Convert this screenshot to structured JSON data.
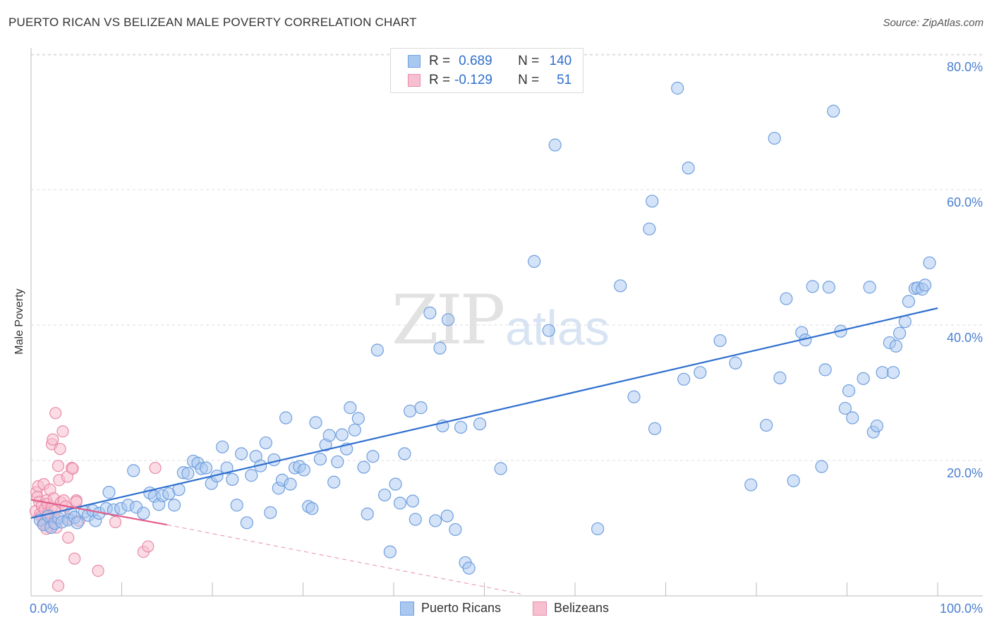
{
  "title": "PUERTO RICAN VS BELIZEAN MALE POVERTY CORRELATION CHART",
  "source": "Source: ZipAtlas.com",
  "watermark": {
    "zip": "ZIP",
    "atlas": "atlas"
  },
  "legend": {
    "r_label": "R =",
    "n_label": "N =",
    "rows": [
      {
        "r": "0.689",
        "n": "140",
        "color": "#a9c8f0",
        "border": "#6f9fdf"
      },
      {
        "r": "-0.129",
        "n": "51",
        "color": "#f7c0d0",
        "border": "#e98aa8"
      }
    ]
  },
  "bottom_legend": [
    "Puerto Ricans",
    "Belizeans"
  ],
  "colors": {
    "blue_fill": "#a9c8f0",
    "blue_stroke": "#6f9fdf",
    "blue_line": "#2f6fcf",
    "pink_fill": "#f7c0d0",
    "pink_stroke": "#e98aa8",
    "pink_line": "#e35d8a",
    "grid": "#dddddd",
    "axis": "#bbbbbb"
  },
  "chart_data": {
    "type": "scatter",
    "title": "PUERTO RICAN VS BELIZEAN MALE POVERTY CORRELATION CHART",
    "xlabel": "",
    "ylabel": "Male Poverty",
    "xlim": [
      0,
      100
    ],
    "ylim": [
      0,
      82
    ],
    "x_ticks": [
      {
        "value": 0,
        "label": "0.0%"
      },
      {
        "value": 100,
        "label": "100.0%"
      }
    ],
    "y_ticks": [
      {
        "value": 20,
        "label": "20.0%"
      },
      {
        "value": 40,
        "label": "40.0%"
      },
      {
        "value": 60,
        "label": "60.0%"
      },
      {
        "value": 80,
        "label": "80.0%"
      }
    ],
    "grid": true,
    "series": [
      {
        "name": "Puerto Ricans",
        "r": 0.689,
        "n": 140,
        "trend": {
          "x0": 0,
          "y0": 11.5,
          "x1": 100,
          "y1": 42.5
        },
        "points": [
          [
            1,
            11.2
          ],
          [
            1.4,
            10.5
          ],
          [
            1.9,
            11.8
          ],
          [
            2.2,
            10.1
          ],
          [
            2.6,
            10.7
          ],
          [
            3,
            11.5
          ],
          [
            3.4,
            10.9
          ],
          [
            4.1,
            11.2
          ],
          [
            4.4,
            12.3
          ],
          [
            4.8,
            11.6
          ],
          [
            5.1,
            10.8
          ],
          [
            5.9,
            12.4
          ],
          [
            6.3,
            11.9
          ],
          [
            6.8,
            12.6
          ],
          [
            7.1,
            11.1
          ],
          [
            7.5,
            12.2
          ],
          [
            8.3,
            12.9
          ],
          [
            8.6,
            15.3
          ],
          [
            9.1,
            12.7
          ],
          [
            9.9,
            12.9
          ],
          [
            10.7,
            13.4
          ],
          [
            11.3,
            18.5
          ],
          [
            11.6,
            13.1
          ],
          [
            12.4,
            12.2
          ],
          [
            13.1,
            15.2
          ],
          [
            13.6,
            14.7
          ],
          [
            14.1,
            13.5
          ],
          [
            14.5,
            14.8
          ],
          [
            15.2,
            15.1
          ],
          [
            15.8,
            13.4
          ],
          [
            16.3,
            15.7
          ],
          [
            16.8,
            18.2
          ],
          [
            17.3,
            18.1
          ],
          [
            17.9,
            19.9
          ],
          [
            18.4,
            19.6
          ],
          [
            18.8,
            18.8
          ],
          [
            19.3,
            18.9
          ],
          [
            19.9,
            16.6
          ],
          [
            20.5,
            17.7
          ],
          [
            21.1,
            22
          ],
          [
            21.6,
            18.9
          ],
          [
            22.2,
            17.2
          ],
          [
            22.7,
            13.4
          ],
          [
            23.2,
            21
          ],
          [
            23.8,
            10.8
          ],
          [
            24.3,
            17.8
          ],
          [
            24.8,
            20.6
          ],
          [
            25.3,
            19.2
          ],
          [
            25.9,
            22.6
          ],
          [
            26.4,
            12.3
          ],
          [
            26.8,
            20.1
          ],
          [
            27.3,
            15.9
          ],
          [
            27.7,
            17.1
          ],
          [
            28.1,
            26.3
          ],
          [
            28.6,
            16.5
          ],
          [
            29.1,
            18.9
          ],
          [
            29.6,
            19.1
          ],
          [
            30.1,
            18.6
          ],
          [
            30.6,
            13.2
          ],
          [
            31,
            12.9
          ],
          [
            31.4,
            25.6
          ],
          [
            31.9,
            20.2
          ],
          [
            32.5,
            22.3
          ],
          [
            32.9,
            23.7
          ],
          [
            33.4,
            16.8
          ],
          [
            33.8,
            19.8
          ],
          [
            34.3,
            23.8
          ],
          [
            34.8,
            21.7
          ],
          [
            35.2,
            27.8
          ],
          [
            35.7,
            24.5
          ],
          [
            36.1,
            26.2
          ],
          [
            36.7,
            19
          ],
          [
            37.1,
            12.1
          ],
          [
            37.7,
            20.6
          ],
          [
            38.2,
            36.3
          ],
          [
            39,
            14.9
          ],
          [
            39.6,
            6.5
          ],
          [
            40.2,
            16.5
          ],
          [
            40.7,
            13.7
          ],
          [
            41.2,
            21
          ],
          [
            41.8,
            27.3
          ],
          [
            42.1,
            14
          ],
          [
            42.4,
            11.3
          ],
          [
            43,
            27.8
          ],
          [
            44,
            41.8
          ],
          [
            44.6,
            11.1
          ],
          [
            45.1,
            36.6
          ],
          [
            45.4,
            25.1
          ],
          [
            45.9,
            11.8
          ],
          [
            46,
            40.8
          ],
          [
            46.8,
            9.8
          ],
          [
            47.4,
            24.9
          ],
          [
            47.9,
            4.9
          ],
          [
            48.3,
            4.1
          ],
          [
            49.5,
            25.4
          ],
          [
            51.8,
            18.8
          ],
          [
            55.5,
            49.4
          ],
          [
            57.1,
            39.2
          ],
          [
            57.8,
            66.6
          ],
          [
            62.5,
            9.9
          ],
          [
            65,
            45.8
          ],
          [
            66.5,
            29.4
          ],
          [
            68.2,
            54.2
          ],
          [
            68.5,
            58.3
          ],
          [
            68.8,
            24.7
          ],
          [
            71.3,
            75
          ],
          [
            72,
            32
          ],
          [
            72.5,
            63.2
          ],
          [
            73.8,
            33
          ],
          [
            76,
            37.7
          ],
          [
            77.7,
            34.4
          ],
          [
            79.4,
            16.4
          ],
          [
            81.1,
            25.2
          ],
          [
            82,
            67.6
          ],
          [
            82.6,
            32.2
          ],
          [
            83.3,
            43.9
          ],
          [
            84.1,
            17
          ],
          [
            85,
            38.9
          ],
          [
            85.4,
            37.8
          ],
          [
            86.2,
            45.7
          ],
          [
            87.2,
            19.1
          ],
          [
            87.6,
            33.4
          ],
          [
            88,
            45.6
          ],
          [
            88.5,
            71.6
          ],
          [
            89.3,
            39.1
          ],
          [
            89.8,
            27.7
          ],
          [
            90.2,
            30.3
          ],
          [
            90.6,
            26.3
          ],
          [
            91.8,
            32.1
          ],
          [
            92.5,
            45.6
          ],
          [
            92.9,
            24.2
          ],
          [
            93.3,
            25.1
          ],
          [
            93.9,
            33
          ],
          [
            94.7,
            37.4
          ],
          [
            95.1,
            33
          ],
          [
            95.4,
            36.9
          ],
          [
            95.8,
            38.8
          ],
          [
            96.4,
            40.5
          ],
          [
            96.8,
            43.5
          ],
          [
            97.5,
            45.4
          ],
          [
            97.8,
            45.5
          ],
          [
            98.3,
            45.3
          ],
          [
            98.6,
            45.9
          ],
          [
            99.1,
            49.2
          ]
        ]
      },
      {
        "name": "Belizeans",
        "r": -0.129,
        "n": 51,
        "trend": {
          "x0": 0,
          "y0": 14.2,
          "x1": 15,
          "y1": 10.5
        },
        "trend_extended": {
          "x0": 15,
          "y0": 10.5,
          "x1": 54,
          "y1": 0.3
        },
        "points": [
          [
            0.5,
            12.5
          ],
          [
            0.6,
            15.3
          ],
          [
            0.7,
            14.6
          ],
          [
            0.8,
            16.2
          ],
          [
            0.9,
            13.9
          ],
          [
            1,
            12.1
          ],
          [
            1.1,
            11.7
          ],
          [
            1.2,
            13.3
          ],
          [
            1.3,
            10.6
          ],
          [
            1.4,
            16.5
          ],
          [
            1.5,
            12.8
          ],
          [
            1.6,
            11.2
          ],
          [
            1.7,
            14.1
          ],
          [
            1.8,
            13.6
          ],
          [
            1.9,
            12.3
          ],
          [
            2,
            10.3
          ],
          [
            2.1,
            15.7
          ],
          [
            2.2,
            11.9
          ],
          [
            2.3,
            13.1
          ],
          [
            2.4,
            10.9
          ],
          [
            2.5,
            14.4
          ],
          [
            2.6,
            12.6
          ],
          [
            2.7,
            11.4
          ],
          [
            2.8,
            10.1
          ],
          [
            1.5,
            10.8
          ],
          [
            1.7,
            9.9
          ],
          [
            2.3,
            22.4
          ],
          [
            2.4,
            23.1
          ],
          [
            2.7,
            27
          ],
          [
            3,
            1.5
          ],
          [
            3,
            19.2
          ],
          [
            3.1,
            17.1
          ],
          [
            3.2,
            21.7
          ],
          [
            3.3,
            13.8
          ],
          [
            3.5,
            24.3
          ],
          [
            3.6,
            14.1
          ],
          [
            3.8,
            13.2
          ],
          [
            4,
            17.6
          ],
          [
            4.1,
            8.6
          ],
          [
            4.2,
            11.4
          ],
          [
            4.5,
            18.9
          ],
          [
            4.6,
            18.8
          ],
          [
            4.8,
            5.5
          ],
          [
            5,
            14.1
          ],
          [
            5,
            13.9
          ],
          [
            5.3,
            11.1
          ],
          [
            7.4,
            3.7
          ],
          [
            9.3,
            10.9
          ],
          [
            12.4,
            6.5
          ],
          [
            12.9,
            7.3
          ],
          [
            13.7,
            18.9
          ]
        ]
      }
    ]
  }
}
